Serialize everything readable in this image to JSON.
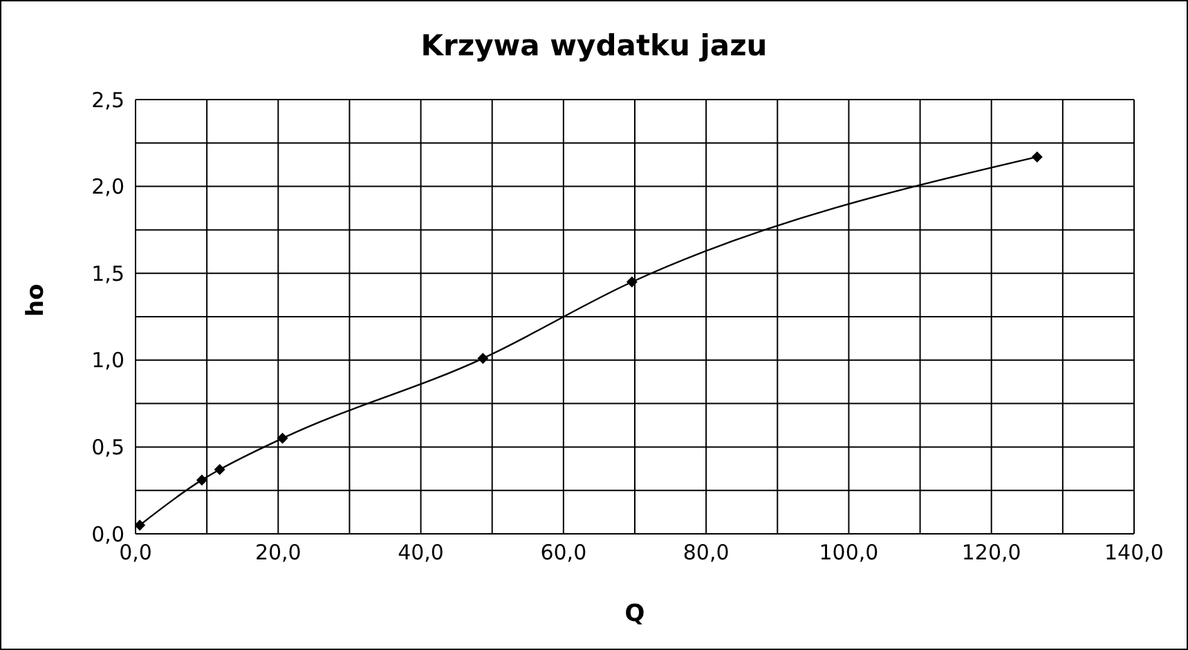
{
  "chart_data": {
    "type": "line",
    "title": "Krzywa wydatku jazu",
    "xlabel": "Q",
    "ylabel": "ho",
    "x": [
      0.6,
      9.3,
      11.8,
      20.6,
      48.7,
      69.6,
      126.4
    ],
    "series": [
      {
        "color": "#000000",
        "values": [
          0.05,
          0.31,
          0.37,
          0.55,
          1.01,
          1.45,
          2.17
        ]
      }
    ],
    "xlim": [
      0,
      140
    ],
    "xticks": [
      {
        "value": 0,
        "label": "0,0"
      },
      {
        "value": 10,
        "label": null
      },
      {
        "value": 20,
        "label": "20,0"
      },
      {
        "value": 30,
        "label": null
      },
      {
        "value": 40,
        "label": "40,0"
      },
      {
        "value": 50,
        "label": null
      },
      {
        "value": 60,
        "label": "60,0"
      },
      {
        "value": 70,
        "label": null
      },
      {
        "value": 80,
        "label": "80,0"
      },
      {
        "value": 90,
        "label": null
      },
      {
        "value": 100,
        "label": "100,0"
      },
      {
        "value": 110,
        "label": null
      },
      {
        "value": 120,
        "label": "120,0"
      },
      {
        "value": 130,
        "label": null
      },
      {
        "value": 140,
        "label": "140,0"
      }
    ],
    "ylim": [
      0,
      2.5
    ],
    "yticks": [
      {
        "value": 0,
        "label": "0,0"
      },
      {
        "value": 0.25,
        "label": null
      },
      {
        "value": 0.5,
        "label": "0,5"
      },
      {
        "value": 0.75,
        "label": null
      },
      {
        "value": 1,
        "label": "1,0"
      },
      {
        "value": 1.25,
        "label": null
      },
      {
        "value": 1.5,
        "label": "1,5"
      },
      {
        "value": 1.75,
        "label": null
      },
      {
        "value": 2,
        "label": "2,0"
      },
      {
        "value": 2.25,
        "label": null
      },
      {
        "value": 2.5,
        "label": "2,5"
      }
    ],
    "grid": true,
    "marker": "diamond",
    "line_style": "solid"
  }
}
